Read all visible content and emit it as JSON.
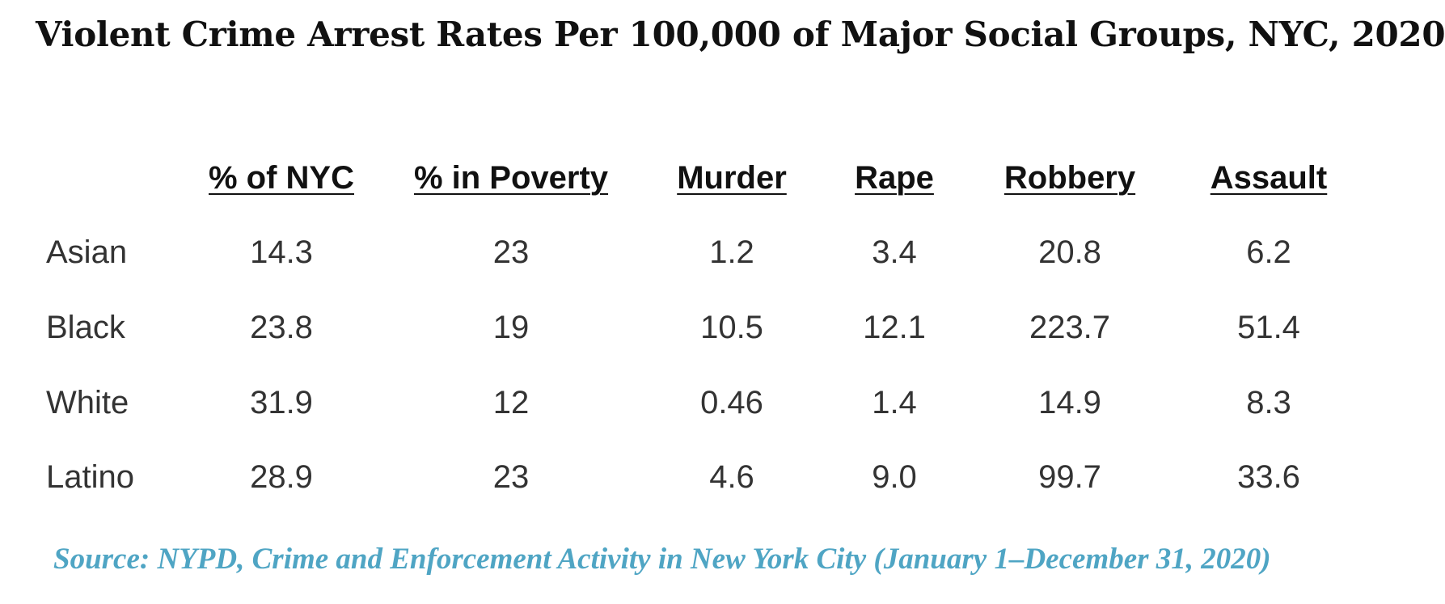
{
  "title": "Violent Crime Arrest Rates Per 100,000 of Major Social Groups, NYC, 2020",
  "table": {
    "headers": [
      "% of NYC",
      "% in Poverty",
      "Murder",
      "Rape",
      "Robbery",
      "Assault"
    ],
    "rows": [
      {
        "label": "Asian",
        "values": [
          "14.3",
          "23",
          "1.2",
          "3.4",
          "20.8",
          "6.2"
        ]
      },
      {
        "label": "Black",
        "values": [
          "23.8",
          "19",
          "10.5",
          "12.1",
          "223.7",
          "51.4"
        ]
      },
      {
        "label": "White",
        "values": [
          "31.9",
          "12",
          "0.46",
          "1.4",
          "14.9",
          "8.3"
        ]
      },
      {
        "label": "Latino",
        "values": [
          "28.9",
          "23",
          "4.6",
          "9.0",
          "99.7",
          "33.6"
        ]
      }
    ]
  },
  "source": "Source: NYPD, Crime and Enforcement Activity in New York City (January 1–December 31, 2020)"
}
